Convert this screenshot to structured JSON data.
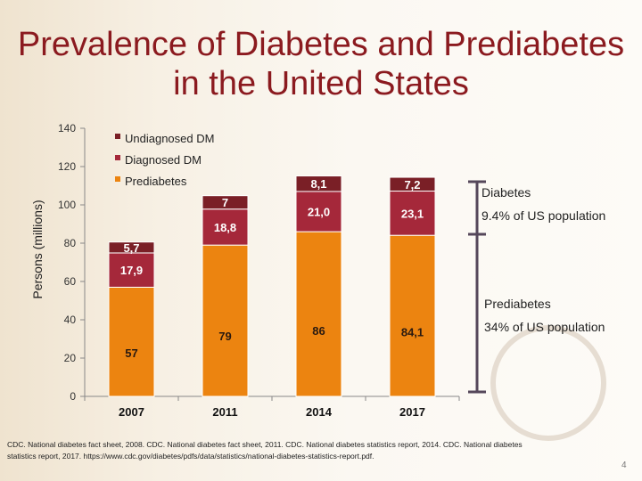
{
  "title": "Prevalence of Diabetes and Prediabetes in the United States",
  "chart_data": {
    "type": "bar",
    "stacked": true,
    "categories": [
      "2007",
      "2011",
      "2014",
      "2017"
    ],
    "series": [
      {
        "name": "Prediabetes",
        "values": [
          57,
          79,
          86,
          84.1
        ],
        "labels": [
          "57",
          "79",
          "86",
          "84,1"
        ],
        "color": "#ec8410"
      },
      {
        "name": "Diagnosed DM",
        "values": [
          17.9,
          18.8,
          21.0,
          23.1
        ],
        "labels": [
          "17,9",
          "18,8",
          "21,0",
          "23,1"
        ],
        "color": "#a5283a"
      },
      {
        "name": "Undiagnosed DM",
        "values": [
          5.7,
          7,
          8.1,
          7.2
        ],
        "labels": [
          "5,7",
          "7",
          "8,1",
          "7,2"
        ],
        "color": "#7a1f26"
      }
    ],
    "ylabel": "Persons (millions)",
    "ylim": [
      0,
      140
    ],
    "yticks": [
      0,
      20,
      40,
      60,
      80,
      100,
      120,
      140
    ],
    "legend": "top-left",
    "grid": false
  },
  "annotations": {
    "diabetes_label": "Diabetes",
    "diabetes_pct": "9.4% of US population",
    "prediabetes_label": "Prediabetes",
    "prediabetes_pct": "34% of US population"
  },
  "references": "CDC. National diabetes fact sheet, 2008. CDC. National diabetes fact sheet, 2011. CDC. National diabetes statistics report, 2014. CDC. National diabetes statistics report, 2017. https://www.cdc.gov/diabetes/pdfs/data/statistics/national-diabetes-statistics-report.pdf.",
  "page_number": "4"
}
